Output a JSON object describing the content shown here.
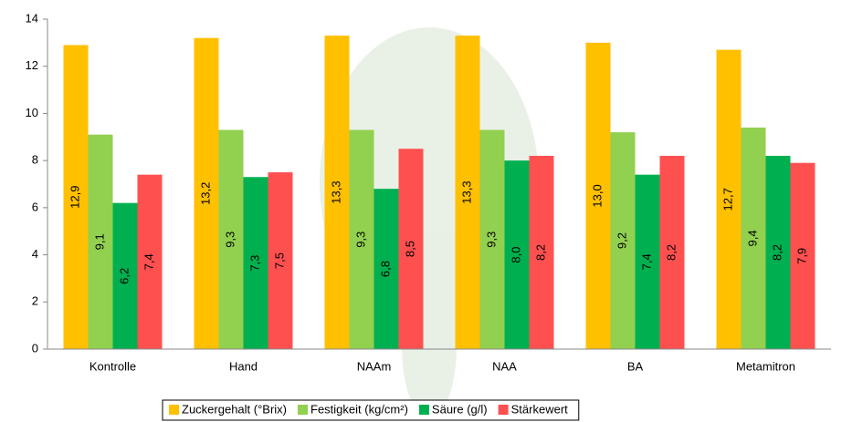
{
  "chart_data": {
    "type": "bar",
    "categories": [
      "Kontrolle",
      "Hand",
      "NAAm",
      "NAA",
      "BA",
      "Metamitron"
    ],
    "series": [
      {
        "name": "Zuckergehalt (°Brix)",
        "color": "#FFC000",
        "values": [
          12.9,
          13.2,
          13.3,
          13.3,
          13.0,
          12.7
        ],
        "value_labels": [
          "12,9",
          "13,2",
          "13,3",
          "13,3",
          "13,0",
          "12,7"
        ]
      },
      {
        "name": "Festigkeit (kg/cm²)",
        "color": "#92D050",
        "values": [
          9.1,
          9.3,
          9.3,
          9.3,
          9.2,
          9.4
        ],
        "value_labels": [
          "9,1",
          "9,3",
          "9,3",
          "9,3",
          "9,2",
          "9,4"
        ]
      },
      {
        "name": "Säure (g/l)",
        "color": "#00B050",
        "values": [
          6.2,
          7.3,
          6.8,
          8.0,
          7.4,
          8.2
        ],
        "value_labels": [
          "6,2",
          "7,3",
          "6,8",
          "8,0",
          "7,4",
          "8,2"
        ]
      },
      {
        "name": "Stärkewert",
        "color": "#FF5050",
        "values": [
          7.4,
          7.5,
          8.5,
          8.2,
          8.2,
          7.9
        ],
        "value_labels": [
          "7,4",
          "7,5",
          "8,5",
          "8,2",
          "8,2",
          "7,9"
        ]
      }
    ],
    "ylim": [
      0,
      14
    ],
    "yticks": [
      0,
      2,
      4,
      6,
      8,
      10,
      12,
      14
    ],
    "grid": false,
    "legend": "bottom"
  }
}
